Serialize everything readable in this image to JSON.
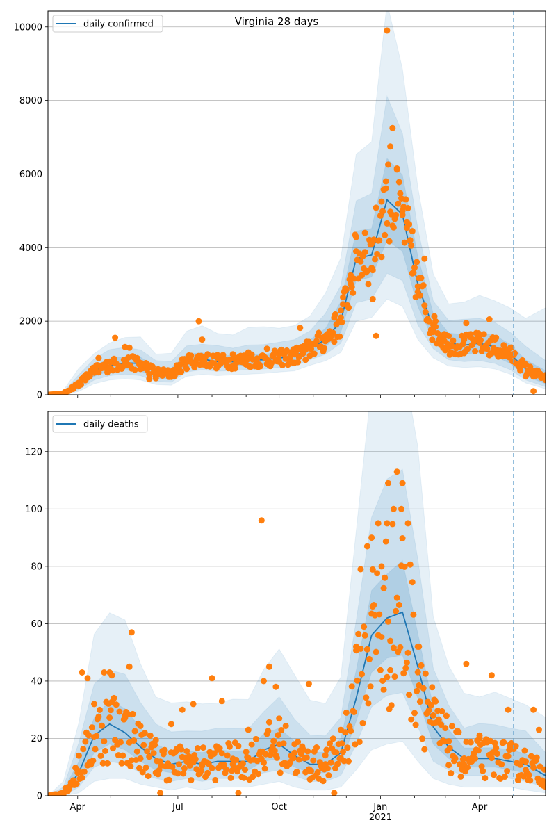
{
  "chart_data": [
    {
      "type": "line",
      "title": "Virginia 28 days",
      "xlabel": "",
      "ylabel": "",
      "ylim": [
        0,
        10430
      ],
      "yticks": [
        0,
        2000,
        4000,
        6000,
        8000,
        10000
      ],
      "ytick_labels": [
        "0",
        "2000",
        "4000",
        "6000",
        "8000",
        "10000"
      ],
      "grid": "horizontal",
      "legend": {
        "position": "top-left",
        "entries": [
          "daily confirmed"
        ]
      },
      "forecast_start": "2021-05-02",
      "x_range": [
        "2020-03-05",
        "2021-05-31"
      ],
      "x": [
        "2020-03-05",
        "2020-03-19",
        "2020-04-02",
        "2020-04-16",
        "2020-04-30",
        "2020-05-14",
        "2020-05-28",
        "2020-06-11",
        "2020-06-25",
        "2020-07-09",
        "2020-07-23",
        "2020-08-06",
        "2020-08-20",
        "2020-09-03",
        "2020-09-17",
        "2020-10-01",
        "2020-10-15",
        "2020-10-29",
        "2020-11-12",
        "2020-11-26",
        "2020-12-10",
        "2020-12-24",
        "2021-01-07",
        "2021-01-21",
        "2021-02-04",
        "2021-02-18",
        "2021-03-04",
        "2021-03-18",
        "2021-04-01",
        "2021-04-15",
        "2021-04-29",
        "2021-05-13",
        "2021-05-31"
      ],
      "series": [
        {
          "name": "daily confirmed",
          "role": "median",
          "values": [
            0,
            30,
            300,
            650,
            800,
            870,
            850,
            600,
            560,
            900,
            970,
            900,
            900,
            950,
            950,
            1000,
            1050,
            1250,
            1500,
            2000,
            3700,
            3800,
            5300,
            4900,
            3000,
            1800,
            1400,
            1350,
            1400,
            1300,
            1100,
            700,
            450
          ]
        },
        {
          "name": "band-inner",
          "role": "band",
          "lower": [
            0,
            15,
            200,
            500,
            650,
            700,
            650,
            450,
            430,
            750,
            820,
            760,
            780,
            800,
            820,
            870,
            920,
            1100,
            1300,
            1700,
            3100,
            3200,
            4200,
            3900,
            2400,
            1500,
            1150,
            1100,
            1150,
            1050,
            850,
            500,
            300
          ],
          "upper": [
            0,
            50,
            420,
            800,
            1000,
            1050,
            1020,
            760,
            720,
            1100,
            1150,
            1060,
            1050,
            1100,
            1100,
            1160,
            1220,
            1450,
            1800,
            2500,
            4400,
            4600,
            6500,
            6000,
            3700,
            2200,
            1700,
            1650,
            1700,
            1600,
            1400,
            950,
            650
          ]
        },
        {
          "name": "band-middle",
          "role": "band",
          "lower": [
            0,
            8,
            140,
            400,
            520,
            560,
            520,
            360,
            340,
            620,
            680,
            640,
            660,
            680,
            700,
            740,
            780,
            950,
            1100,
            1400,
            2500,
            2600,
            3300,
            3100,
            1900,
            1250,
            950,
            900,
            930,
            850,
            680,
            400,
            220
          ],
          "upper": [
            0,
            80,
            560,
            950,
            1200,
            1300,
            1250,
            920,
            900,
            1350,
            1400,
            1300,
            1280,
            1350,
            1350,
            1420,
            1500,
            1750,
            2200,
            3000,
            5200,
            5600,
            8100,
            7300,
            4500,
            2600,
            2000,
            2000,
            2100,
            1950,
            1700,
            1350,
            950
          ]
        },
        {
          "name": "band-outer",
          "role": "band",
          "lower": [
            0,
            4,
            90,
            300,
            400,
            430,
            400,
            280,
            260,
            500,
            550,
            520,
            540,
            560,
            580,
            620,
            650,
            800,
            920,
            1150,
            2000,
            2100,
            2600,
            2400,
            1500,
            1000,
            780,
            740,
            760,
            700,
            560,
            320,
            160
          ],
          "upper": [
            0,
            120,
            700,
            1150,
            1450,
            1600,
            1550,
            1100,
            1100,
            1700,
            1900,
            1700,
            1650,
            1800,
            1800,
            1850,
            1900,
            2200,
            2800,
            3800,
            6400,
            7000,
            10400,
            9000,
            5500,
            3200,
            2500,
            2500,
            2700,
            2600,
            2300,
            2100,
            2300
          ]
        },
        {
          "name": "observed",
          "role": "points",
          "values": [
            0,
            40,
            250,
            600,
            900,
            1300,
            700,
            450,
            500,
            950,
            1500,
            1000,
            1100,
            1150,
            1050,
            900,
            1100,
            1300,
            1600,
            2100,
            3900,
            4100,
            9900,
            5000,
            2800,
            1900,
            1300,
            1500,
            1600,
            1500,
            1100,
            500,
            400
          ]
        }
      ],
      "observed_extra": [
        [
          "2020-04-20",
          1000
        ],
        [
          "2020-05-05",
          1550
        ],
        [
          "2020-05-18",
          1280
        ],
        [
          "2020-06-05",
          430
        ],
        [
          "2020-07-20",
          2000
        ],
        [
          "2020-08-28",
          1000
        ],
        [
          "2020-09-20",
          1250
        ],
        [
          "2020-10-20",
          1820
        ],
        [
          "2020-11-20",
          2100
        ],
        [
          "2020-12-05",
          3250
        ],
        [
          "2020-12-18",
          4400
        ],
        [
          "2020-12-28",
          1600
        ],
        [
          "2021-01-02",
          5250
        ],
        [
          "2021-01-06",
          5800
        ],
        [
          "2021-01-10",
          6750
        ],
        [
          "2021-01-12",
          7250
        ],
        [
          "2021-01-16",
          6150
        ],
        [
          "2021-01-25",
          4700
        ],
        [
          "2021-02-10",
          3700
        ],
        [
          "2021-02-20",
          2000
        ],
        [
          "2021-03-20",
          1950
        ],
        [
          "2021-04-10",
          2050
        ],
        [
          "2021-05-20",
          100
        ],
        [
          "2021-04-18",
          1200
        ],
        [
          "2020-10-25",
          950
        ],
        [
          "2020-12-25",
          2600
        ],
        [
          "2021-01-30",
          3300
        ],
        [
          "2021-02-28",
          1650
        ],
        [
          "2020-11-28",
          2650
        ],
        [
          "2020-08-10",
          900
        ]
      ]
    },
    {
      "type": "line",
      "title": "",
      "xlabel": "",
      "ylabel": "",
      "ylim": [
        0,
        134
      ],
      "yticks": [
        0,
        20,
        40,
        60,
        80,
        100,
        120
      ],
      "ytick_labels": [
        "0",
        "20",
        "40",
        "60",
        "80",
        "100",
        "120"
      ],
      "grid": "horizontal",
      "legend": {
        "position": "top-left",
        "entries": [
          "daily deaths"
        ]
      },
      "forecast_start": "2021-05-02",
      "x_range": [
        "2020-03-05",
        "2021-05-31"
      ],
      "xticks": [
        "Apr",
        "Jul",
        "Oct",
        "Jan\n2021",
        "Apr"
      ],
      "xtick_dates": [
        "2020-04-01",
        "2020-07-01",
        "2020-10-01",
        "2021-01-01",
        "2021-04-01"
      ],
      "x": [
        "2020-03-05",
        "2020-03-19",
        "2020-04-02",
        "2020-04-16",
        "2020-04-30",
        "2020-05-14",
        "2020-05-28",
        "2020-06-11",
        "2020-06-25",
        "2020-07-09",
        "2020-07-23",
        "2020-08-06",
        "2020-08-20",
        "2020-09-03",
        "2020-09-17",
        "2020-10-01",
        "2020-10-15",
        "2020-10-29",
        "2020-11-12",
        "2020-11-26",
        "2020-12-10",
        "2020-12-24",
        "2021-01-07",
        "2021-01-21",
        "2021-02-04",
        "2021-02-18",
        "2021-03-04",
        "2021-03-18",
        "2021-04-01",
        "2021-04-15",
        "2021-04-29",
        "2021-05-13",
        "2021-05-31"
      ],
      "series": [
        {
          "name": "daily deaths",
          "role": "median",
          "values": [
            0,
            1,
            8,
            21,
            25,
            22,
            17,
            13,
            11,
            12,
            11,
            12,
            12,
            12,
            16,
            18,
            14,
            11,
            11,
            15,
            34,
            56,
            62,
            64,
            45,
            24,
            17,
            13,
            13,
            13,
            12,
            11,
            7
          ]
        },
        {
          "name": "band-inner",
          "role": "band",
          "lower": [
            0,
            0,
            5,
            15,
            18,
            16,
            12,
            9,
            8,
            9,
            8,
            9,
            9,
            9,
            12,
            13,
            10,
            8,
            8,
            11,
            26,
            43,
            48,
            49,
            34,
            18,
            13,
            10,
            10,
            10,
            9,
            8,
            5
          ],
          "upper": [
            0,
            2,
            12,
            28,
            33,
            30,
            23,
            18,
            15,
            16,
            15,
            16,
            16,
            16,
            21,
            24,
            19,
            15,
            15,
            20,
            43,
            70,
            78,
            80,
            57,
            31,
            23,
            17,
            17,
            17,
            16,
            15,
            10
          ]
        },
        {
          "name": "band-middle",
          "role": "band",
          "lower": [
            0,
            0,
            3,
            10,
            12,
            11,
            8,
            6,
            5,
            6,
            5,
            6,
            6,
            6,
            8,
            9,
            7,
            5,
            5,
            7,
            18,
            31,
            35,
            36,
            24,
            12,
            9,
            7,
            7,
            7,
            6,
            5,
            3
          ],
          "upper": [
            0,
            3,
            18,
            38,
            45,
            42,
            32,
            25,
            22,
            22,
            22,
            23,
            23,
            23,
            30,
            34,
            27,
            21,
            21,
            28,
            60,
            98,
            112,
            115,
            82,
            44,
            32,
            24,
            25,
            25,
            23,
            22,
            15
          ]
        },
        {
          "name": "band-outer",
          "role": "band",
          "lower": [
            0,
            0,
            1,
            5,
            6,
            6,
            4,
            3,
            2,
            3,
            2,
            3,
            3,
            3,
            4,
            5,
            3,
            2,
            2,
            3,
            9,
            16,
            18,
            19,
            12,
            6,
            4,
            3,
            3,
            3,
            3,
            2,
            1
          ],
          "upper": [
            0,
            5,
            26,
            55,
            65,
            60,
            45,
            35,
            32,
            33,
            32,
            33,
            33,
            34,
            43,
            52,
            42,
            33,
            33,
            42,
            90,
            140,
            150,
            150,
            120,
            62,
            45,
            35,
            35,
            36,
            33,
            32,
            28
          ]
        },
        {
          "name": "observed",
          "role": "points",
          "values": [
            0,
            1,
            14,
            32,
            43,
            28,
            13,
            8,
            25,
            12,
            11,
            17,
            11,
            23,
            40,
            18,
            15,
            9,
            11,
            23,
            52,
            90,
            95,
            109,
            52,
            28,
            19,
            13,
            21,
            15,
            18,
            9,
            4
          ]
        }
      ],
      "observed_extra": [
        [
          "2020-04-05",
          43
        ],
        [
          "2020-04-10",
          41
        ],
        [
          "2020-04-25",
          43
        ],
        [
          "2020-05-02",
          42
        ],
        [
          "2020-05-20",
          57
        ],
        [
          "2020-05-18",
          45
        ],
        [
          "2020-07-05",
          30
        ],
        [
          "2020-07-15",
          32
        ],
        [
          "2020-08-01",
          41
        ],
        [
          "2020-08-10",
          33
        ],
        [
          "2020-09-15",
          96
        ],
        [
          "2020-09-22",
          45
        ],
        [
          "2020-09-28",
          38
        ],
        [
          "2020-10-28",
          39
        ],
        [
          "2020-12-14",
          79
        ],
        [
          "2020-12-20",
          87
        ],
        [
          "2020-12-30",
          95
        ],
        [
          "2021-01-08",
          109
        ],
        [
          "2021-01-13",
          100
        ],
        [
          "2021-01-16",
          113
        ],
        [
          "2021-01-20",
          100
        ],
        [
          "2021-01-02",
          80
        ],
        [
          "2020-12-25",
          66
        ],
        [
          "2021-01-26",
          95
        ],
        [
          "2021-02-05",
          52
        ],
        [
          "2021-03-20",
          46
        ],
        [
          "2021-04-12",
          42
        ],
        [
          "2021-04-27",
          30
        ],
        [
          "2021-05-20",
          30
        ],
        [
          "2021-05-25",
          23
        ],
        [
          "2020-06-15",
          1
        ],
        [
          "2020-08-25",
          1
        ],
        [
          "2020-11-20",
          1
        ],
        [
          "2021-01-10",
          54
        ],
        [
          "2021-01-04",
          37
        ]
      ]
    }
  ],
  "colors": {
    "median": "#1f77b4",
    "band": "#1f77b4",
    "points": "#ff7f0e",
    "forecast_line": "#6fa8cf",
    "grid": "#b0b0b0"
  }
}
